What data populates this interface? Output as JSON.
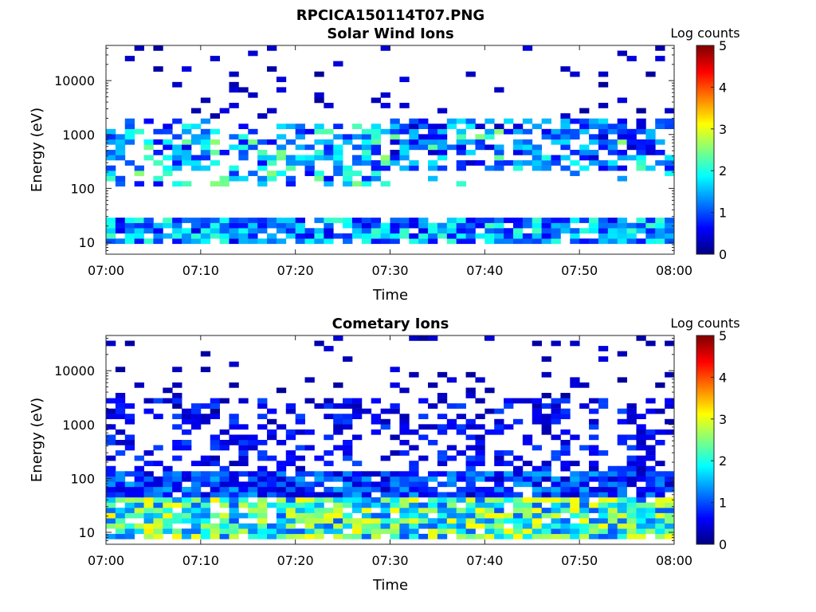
{
  "figure_title": "RPCICA150114T07.PNG",
  "colorbar_title": "Log counts",
  "colorbar_ticks": [
    "0",
    "1",
    "2",
    "3",
    "4",
    "5"
  ],
  "x_ticks": [
    "07:00",
    "07:10",
    "07:20",
    "07:30",
    "07:40",
    "07:50",
    "08:00"
  ],
  "y_ticks": [
    "10",
    "100",
    "1000",
    "10000"
  ],
  "chart_data": [
    {
      "type": "heatmap",
      "title": "Solar Wind Ions",
      "xlabel": "Time",
      "ylabel": "Energy (eV)",
      "xlim": [
        "07:00",
        "08:00"
      ],
      "ylim": [
        6,
        45000
      ],
      "yscale": "log",
      "colormap": "jet",
      "clim": [
        0,
        5
      ],
      "colorbar_label": "Log counts",
      "bands": [
        {
          "energy_range": [
            10,
            30
          ],
          "log_counts_range": [
            0.5,
            2.2
          ],
          "coverage": "continuous 07:00-08:00"
        },
        {
          "energy_range": [
            100,
            1500
          ],
          "log_counts_range": [
            0.5,
            2.6
          ],
          "coverage": "sporadic 07:00-07:30"
        },
        {
          "energy_range": [
            200,
            2000
          ],
          "log_counts_range": [
            0.3,
            1.8
          ],
          "coverage": "more continuous 07:30-08:00"
        }
      ],
      "peak_log_counts": 2.6
    },
    {
      "type": "heatmap",
      "title": "Cometary Ions",
      "xlabel": "Time",
      "ylabel": "Energy (eV)",
      "xlim": [
        "07:00",
        "08:00"
      ],
      "ylim": [
        6,
        45000
      ],
      "yscale": "log",
      "colormap": "jet",
      "clim": [
        0,
        5
      ],
      "colorbar_label": "Log counts",
      "bands": [
        {
          "energy_range": [
            8,
            40
          ],
          "log_counts_range": [
            1.0,
            3.2
          ],
          "coverage": "continuous 07:00-08:00"
        },
        {
          "energy_range": [
            40,
            150
          ],
          "log_counts_range": [
            0.3,
            1.5
          ],
          "coverage": "continuous 07:00-08:00"
        },
        {
          "energy_range": [
            150,
            3000
          ],
          "log_counts_range": [
            0.2,
            1.0
          ],
          "coverage": "sporadic"
        }
      ],
      "peak_log_counts": 3.2
    }
  ]
}
